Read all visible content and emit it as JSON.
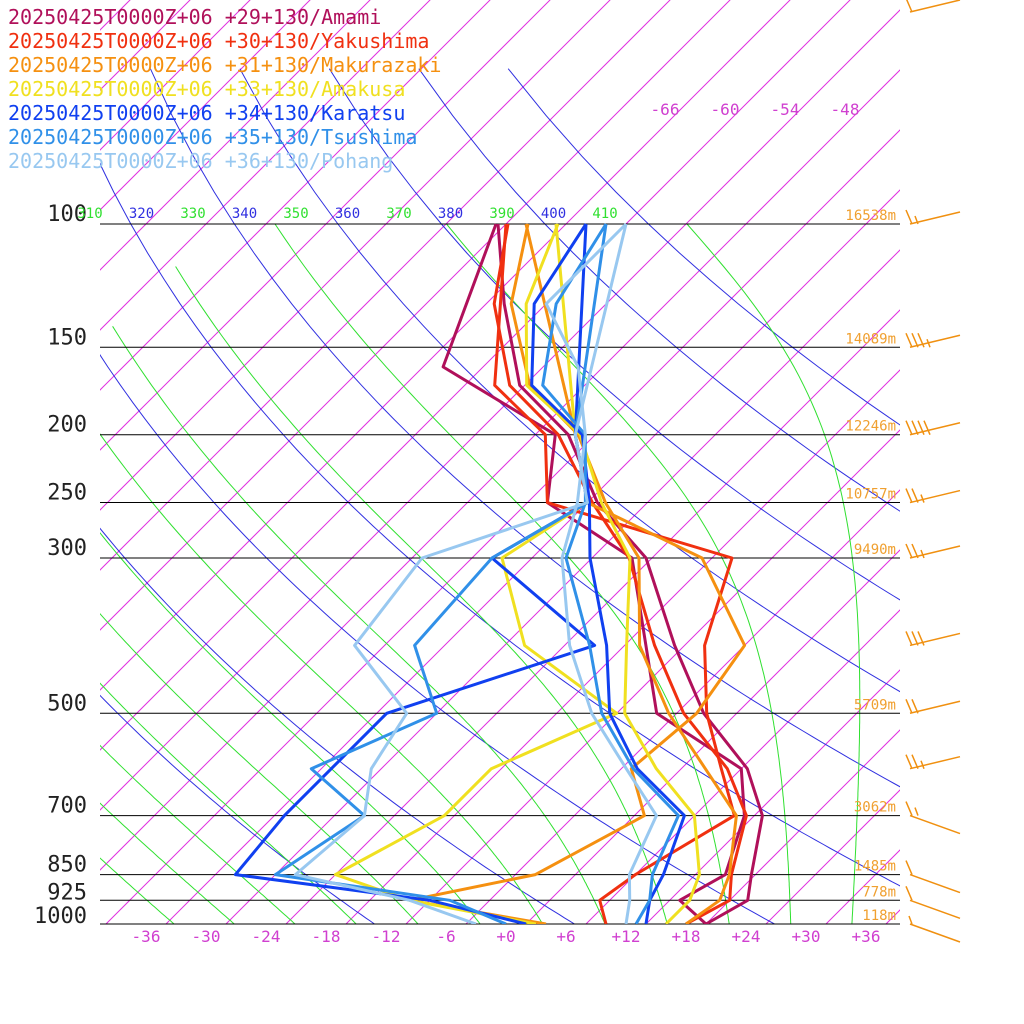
{
  "chart_data": {
    "type": "line",
    "title": "",
    "xlabel": "",
    "ylabel": "",
    "x_ticks": [
      "-36",
      "-30",
      "-24",
      "-18",
      "-12",
      "-6",
      "+0",
      "+6",
      "+12",
      "+18",
      "+24",
      "+30",
      "+36"
    ],
    "xlim": [
      -40,
      40
    ],
    "pressure_levels": [
      100,
      150,
      200,
      250,
      300,
      500,
      700,
      850,
      925,
      1000
    ],
    "pressure_labels": [
      "100",
      "150",
      "200",
      "250",
      "300",
      "500",
      "700",
      "850",
      "925",
      "1000"
    ],
    "heights": [
      {
        "p": 100,
        "label": "16538m"
      },
      {
        "p": 150,
        "label": "14089m"
      },
      {
        "p": 200,
        "label": "12246m"
      },
      {
        "p": 250,
        "label": "10757m"
      },
      {
        "p": 300,
        "label": "9490m"
      },
      {
        "p": 500,
        "label": "5709m"
      },
      {
        "p": 700,
        "label": "3062m"
      },
      {
        "p": 850,
        "label": "1485m"
      },
      {
        "p": 925,
        "label": "778m"
      },
      {
        "p": 1000,
        "label": "118m"
      }
    ],
    "isotherm_labels": [
      "-66",
      "-60",
      "-54",
      "-48"
    ],
    "theta_labels": [
      "310",
      "320",
      "330",
      "340",
      "350",
      "360",
      "370",
      "380",
      "390",
      "400",
      "410"
    ],
    "colors": {
      "isobar": "#000000",
      "isotherm": "#e030e0",
      "dry_adiabat": "#3030e0",
      "moist_adiabat": "#30e030",
      "height_label": "#f0a030",
      "wind_barb": "#f09010",
      "isotherm_label": "#d040d0"
    },
    "series": [
      {
        "name": "20250425T0000Z+06 +29+130/Amami",
        "color": "#b0105a",
        "temperature": [
          [
            100,
            -70.8
          ],
          [
            130,
            -62.2
          ],
          [
            170,
            -52.5
          ],
          [
            200,
            -42.7
          ],
          [
            250,
            -33
          ],
          [
            300,
            -22.6
          ],
          [
            400,
            -11
          ],
          [
            500,
            -1.3
          ],
          [
            600,
            8.6
          ],
          [
            700,
            14.8
          ],
          [
            850,
            19.6
          ],
          [
            925,
            21.8
          ],
          [
            1000,
            20
          ]
        ],
        "dewpoint": [
          [
            100,
            -71
          ],
          [
            160,
            -62
          ],
          [
            200,
            -44
          ],
          [
            250,
            -38
          ],
          [
            300,
            -24
          ],
          [
            500,
            -6
          ],
          [
            600,
            8
          ],
          [
            700,
            13
          ],
          [
            850,
            17
          ],
          [
            925,
            15
          ],
          [
            1000,
            20
          ]
        ]
      },
      {
        "name": "20250425T0000Z+06 +30+130/Yakushima",
        "color": "#f03010",
        "temperature": [
          [
            100,
            -69.8
          ],
          [
            130,
            -63.2
          ],
          [
            170,
            -53.5
          ],
          [
            200,
            -43.7
          ],
          [
            250,
            -33.5
          ],
          [
            300,
            -24.3
          ],
          [
            400,
            -13
          ],
          [
            500,
            -3.3
          ],
          [
            600,
            6.6
          ],
          [
            700,
            13.2
          ],
          [
            850,
            17.6
          ],
          [
            925,
            20
          ],
          [
            1000,
            18
          ]
        ],
        "dewpoint": [
          [
            100,
            -70
          ],
          [
            170,
            -55
          ],
          [
            200,
            -45
          ],
          [
            250,
            -38
          ],
          [
            300,
            -14
          ],
          [
            400,
            -8
          ],
          [
            500,
            -1
          ],
          [
            600,
            6
          ],
          [
            700,
            12
          ],
          [
            850,
            8
          ],
          [
            925,
            7
          ],
          [
            1000,
            10
          ]
        ]
      },
      {
        "name": "20250425T0000Z+06 +31+130/Makurazaki",
        "color": "#f59010",
        "temperature": [
          [
            100,
            -67.8
          ],
          [
            130,
            -61.5
          ],
          [
            170,
            -51.5
          ],
          [
            200,
            -41.7
          ],
          [
            250,
            -32.2
          ],
          [
            300,
            -23.3
          ],
          [
            400,
            -14.5
          ],
          [
            500,
            -4.8
          ],
          [
            600,
            4.4
          ],
          [
            700,
            12.2
          ],
          [
            850,
            17.4
          ],
          [
            925,
            19
          ],
          [
            1000,
            18
          ]
        ],
        "dewpoint": [
          [
            100,
            -68
          ],
          [
            200,
            -42
          ],
          [
            250,
            -34
          ],
          [
            300,
            -17
          ],
          [
            400,
            -4
          ],
          [
            500,
            -2
          ],
          [
            600,
            -3
          ],
          [
            700,
            3
          ],
          [
            850,
            -2
          ],
          [
            925,
            -12
          ],
          [
            1000,
            4
          ]
        ]
      },
      {
        "name": "20250425T0000Z+06 +33+130/Amakusa",
        "color": "#f0e020",
        "temperature": [
          [
            100,
            -64.8
          ],
          [
            130,
            -60
          ],
          [
            170,
            -51.8
          ],
          [
            200,
            -41.5
          ],
          [
            250,
            -32.6
          ],
          [
            300,
            -24.2
          ],
          [
            400,
            -15.8
          ],
          [
            500,
            -9.2
          ],
          [
            600,
            -0.5
          ],
          [
            700,
            8
          ],
          [
            850,
            14.4
          ],
          [
            925,
            16
          ],
          [
            1000,
            16
          ]
        ],
        "dewpoint": [
          [
            100,
            -65
          ],
          [
            200,
            -42
          ],
          [
            250,
            -34
          ],
          [
            300,
            -37
          ],
          [
            400,
            -26
          ],
          [
            500,
            -10
          ],
          [
            600,
            -17
          ],
          [
            700,
            -17
          ],
          [
            850,
            -22
          ],
          [
            925,
            -12
          ],
          [
            1000,
            3
          ]
        ]
      },
      {
        "name": "20250425T0000Z+06 +34+130/Karatsu",
        "color": "#1040f0",
        "temperature": [
          [
            100,
            -62
          ],
          [
            130,
            -59.2
          ],
          [
            170,
            -51.3
          ],
          [
            200,
            -41.3
          ],
          [
            250,
            -33.8
          ],
          [
            300,
            -28.2
          ],
          [
            400,
            -17.8
          ],
          [
            500,
            -10.7
          ],
          [
            600,
            -2.4
          ],
          [
            700,
            7
          ],
          [
            850,
            10.8
          ],
          [
            925,
            12
          ],
          [
            1000,
            14
          ]
        ],
        "dewpoint": [
          [
            100,
            -62
          ],
          [
            200,
            -42
          ],
          [
            250,
            -34
          ],
          [
            300,
            -38
          ],
          [
            400,
            -19
          ],
          [
            500,
            -33
          ],
          [
            600,
            -33
          ],
          [
            700,
            -33
          ],
          [
            850,
            -32
          ],
          [
            925,
            -10
          ],
          [
            1000,
            2
          ]
        ]
      },
      {
        "name": "20250425T0000Z+06 +35+130/Tsushima",
        "color": "#3090e8",
        "temperature": [
          [
            100,
            -60
          ],
          [
            130,
            -57
          ],
          [
            170,
            -50.2
          ],
          [
            200,
            -41
          ],
          [
            250,
            -34.2
          ],
          [
            300,
            -30.6
          ],
          [
            400,
            -19.5
          ],
          [
            500,
            -11.5
          ],
          [
            600,
            -2.8
          ],
          [
            700,
            6.4
          ],
          [
            850,
            9.7
          ],
          [
            925,
            12
          ],
          [
            1000,
            13
          ]
        ],
        "dewpoint": [
          [
            100,
            -60
          ],
          [
            200,
            -42
          ],
          [
            250,
            -34
          ],
          [
            300,
            -38
          ],
          [
            400,
            -37
          ],
          [
            500,
            -28
          ],
          [
            600,
            -35
          ],
          [
            700,
            -25
          ],
          [
            850,
            -28
          ],
          [
            925,
            -8
          ],
          [
            1000,
            0
          ]
        ]
      },
      {
        "name": "20250425T0000Z+06 +36+130/Pohang",
        "color": "#98c8f0",
        "temperature": [
          [
            100,
            -58
          ],
          [
            130,
            -58
          ],
          [
            160,
            -48.5
          ],
          [
            200,
            -41
          ],
          [
            250,
            -35
          ],
          [
            300,
            -31
          ],
          [
            400,
            -21.5
          ],
          [
            500,
            -12.5
          ],
          [
            600,
            -3.5
          ],
          [
            700,
            4.2
          ],
          [
            850,
            7.4
          ],
          [
            925,
            10
          ],
          [
            1000,
            12
          ]
        ],
        "dewpoint": [
          [
            100,
            -58
          ],
          [
            200,
            -42
          ],
          [
            250,
            -34
          ],
          [
            300,
            -45
          ],
          [
            400,
            -43
          ],
          [
            500,
            -31
          ],
          [
            600,
            -29
          ],
          [
            700,
            -25
          ],
          [
            850,
            -26
          ],
          [
            925,
            -12
          ],
          [
            1000,
            -3
          ]
        ]
      }
    ],
    "wind_barbs": [
      {
        "p": 80,
        "speed_kt": 10,
        "dir_deg": 265
      },
      {
        "p": 100,
        "speed_kt": 15,
        "dir_deg": 255
      },
      {
        "p": 150,
        "speed_kt": 35,
        "dir_deg": 260
      },
      {
        "p": 200,
        "speed_kt": 40,
        "dir_deg": 260
      },
      {
        "p": 250,
        "speed_kt": 25,
        "dir_deg": 255
      },
      {
        "p": 300,
        "speed_kt": 25,
        "dir_deg": 255
      },
      {
        "p": 400,
        "speed_kt": 30,
        "dir_deg": 255
      },
      {
        "p": 500,
        "speed_kt": 20,
        "dir_deg": 255
      },
      {
        "p": 600,
        "speed_kt": 25,
        "dir_deg": 255
      },
      {
        "p": 700,
        "speed_kt": 15,
        "dir_deg": 300
      },
      {
        "p": 850,
        "speed_kt": 10,
        "dir_deg": 325
      },
      {
        "p": 925,
        "speed_kt": 10,
        "dir_deg": 330
      },
      {
        "p": 1000,
        "speed_kt": 5,
        "dir_deg": 330
      }
    ]
  }
}
